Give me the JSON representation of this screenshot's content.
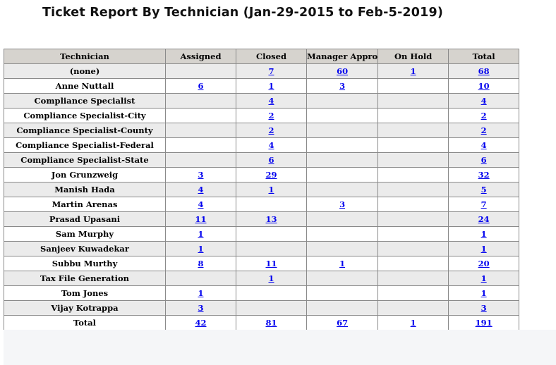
{
  "title": "Ticket Report By Technician (Jan-29-2015 to Feb-5-2019)",
  "columns": [
    "Technician",
    "Assigned",
    "Closed",
    "Manager Appro",
    "On Hold",
    "Total"
  ],
  "rows": [
    {
      "technician": "(none)",
      "assigned": "",
      "closed": "7",
      "manager_appro": "60",
      "on_hold": "1",
      "total": "68"
    },
    {
      "technician": "Anne Nuttall",
      "assigned": "6",
      "closed": "1",
      "manager_appro": "3",
      "on_hold": "",
      "total": "10"
    },
    {
      "technician": "Compliance Specialist",
      "assigned": "",
      "closed": "4",
      "manager_appro": "",
      "on_hold": "",
      "total": "4"
    },
    {
      "technician": "Compliance Specialist-City",
      "assigned": "",
      "closed": "2",
      "manager_appro": "",
      "on_hold": "",
      "total": "2"
    },
    {
      "technician": "Compliance Specialist-County",
      "assigned": "",
      "closed": "2",
      "manager_appro": "",
      "on_hold": "",
      "total": "2"
    },
    {
      "technician": "Compliance Specialist-Federal",
      "assigned": "",
      "closed": "4",
      "manager_appro": "",
      "on_hold": "",
      "total": "4"
    },
    {
      "technician": "Compliance Specialist-State",
      "assigned": "",
      "closed": "6",
      "manager_appro": "",
      "on_hold": "",
      "total": "6"
    },
    {
      "technician": "Jon Grunzweig",
      "assigned": "3",
      "closed": "29",
      "manager_appro": "",
      "on_hold": "",
      "total": "32"
    },
    {
      "technician": "Manish Hada",
      "assigned": "4",
      "closed": "1",
      "manager_appro": "",
      "on_hold": "",
      "total": "5"
    },
    {
      "technician": "Martin Arenas",
      "assigned": "4",
      "closed": "",
      "manager_appro": "3",
      "on_hold": "",
      "total": "7"
    },
    {
      "technician": "Prasad Upasani",
      "assigned": "11",
      "closed": "13",
      "manager_appro": "",
      "on_hold": "",
      "total": "24"
    },
    {
      "technician": "Sam Murphy",
      "assigned": "1",
      "closed": "",
      "manager_appro": "",
      "on_hold": "",
      "total": "1"
    },
    {
      "technician": "Sanjeev Kuwadekar",
      "assigned": "1",
      "closed": "",
      "manager_appro": "",
      "on_hold": "",
      "total": "1"
    },
    {
      "technician": "Subbu Murthy",
      "assigned": "8",
      "closed": "11",
      "manager_appro": "1",
      "on_hold": "",
      "total": "20"
    },
    {
      "technician": "Tax File Generation",
      "assigned": "",
      "closed": "1",
      "manager_appro": "",
      "on_hold": "",
      "total": "1"
    },
    {
      "technician": "Tom Jones",
      "assigned": "1",
      "closed": "",
      "manager_appro": "",
      "on_hold": "",
      "total": "1"
    },
    {
      "technician": "Vijay Kotrappa",
      "assigned": "3",
      "closed": "",
      "manager_appro": "",
      "on_hold": "",
      "total": "3"
    }
  ],
  "totals": {
    "label": "Total",
    "assigned": "42",
    "closed": "81",
    "manager_appro": "67",
    "on_hold": "1",
    "total": "191"
  },
  "colors": {
    "header_bg": "#d6d3ce",
    "alt_row_bg": "#ebebeb",
    "link": "#0000ee",
    "border": "#8a8a8a"
  }
}
